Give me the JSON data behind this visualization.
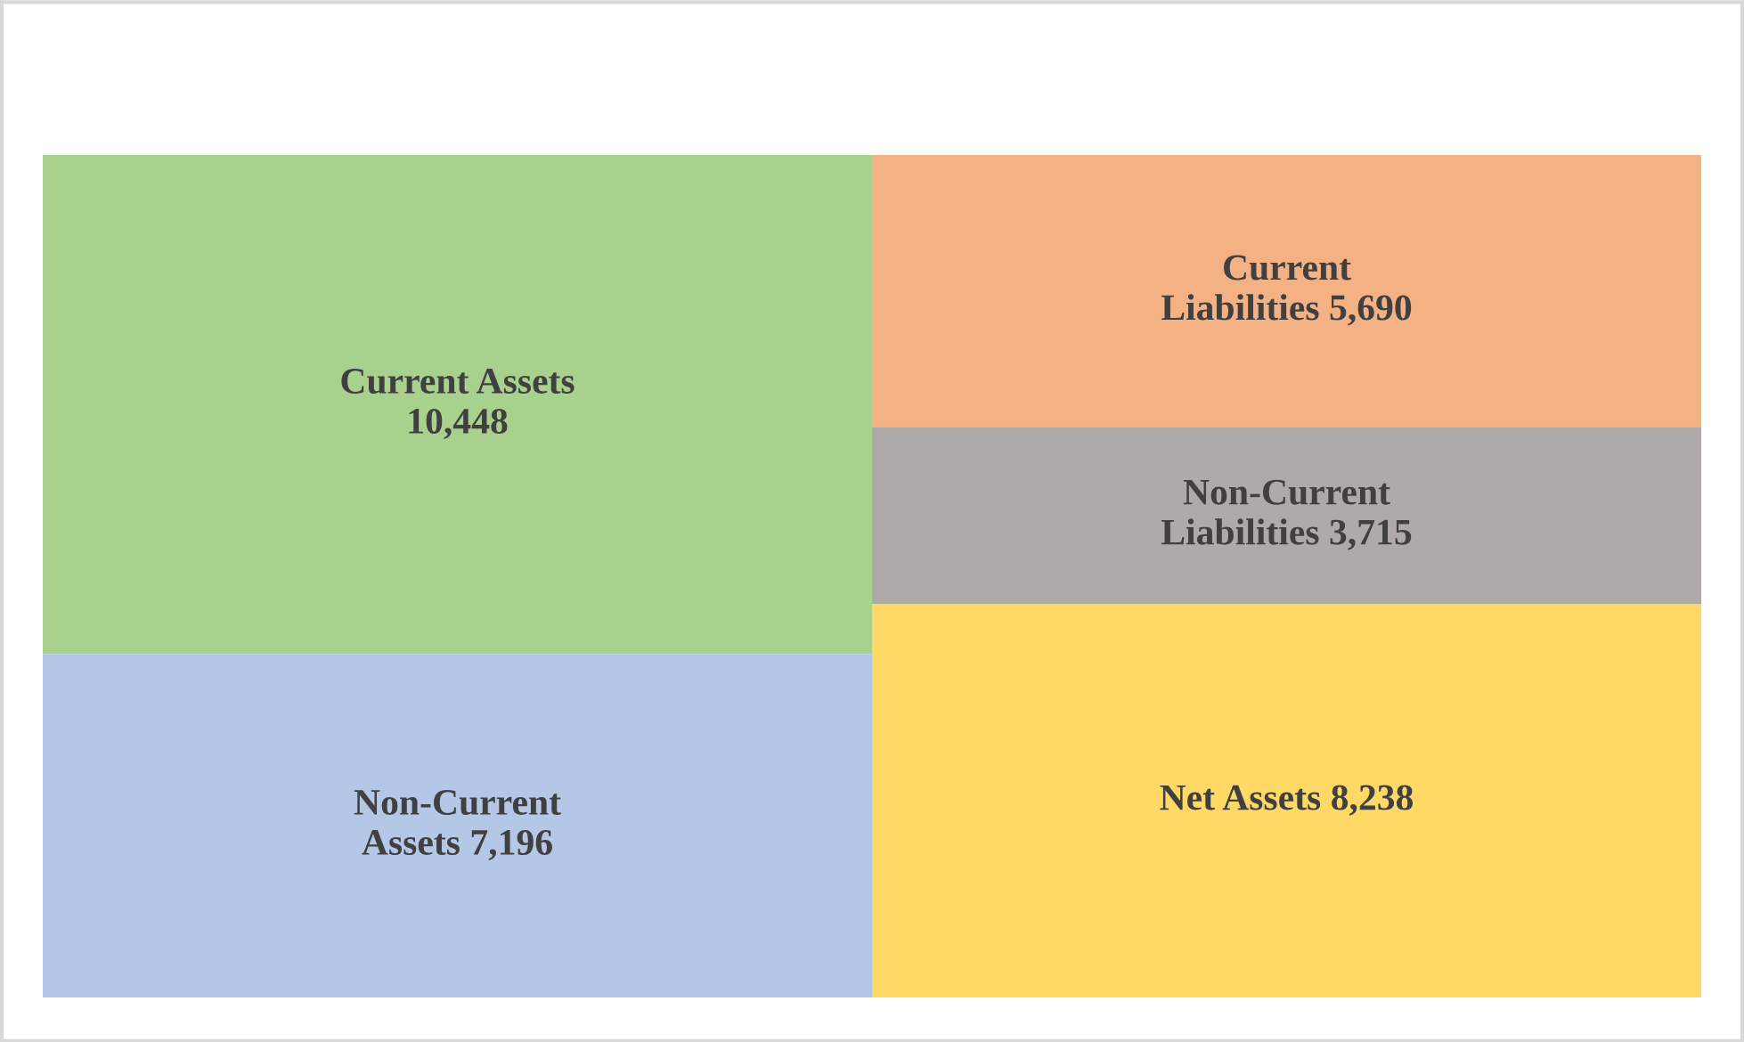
{
  "chart_data": {
    "type": "bar",
    "stacked": true,
    "legend": false,
    "categories": [
      null,
      null
    ],
    "series": [
      {
        "name": "Non-Current Assets",
        "color": "#b4c7e7",
        "values": [
          7196,
          null
        ],
        "value_labels": [
          "7,196",
          null
        ]
      },
      {
        "name": "Current Assets",
        "color": "#a9d18e",
        "values": [
          10448,
          null
        ],
        "value_labels": [
          "10,448",
          null
        ]
      },
      {
        "name": "Net Assets",
        "color": "#ffd966",
        "values": [
          null,
          8238
        ],
        "value_labels": [
          null,
          "8,238"
        ]
      },
      {
        "name": "Non-Current Liabilities",
        "color": "#aeaaaa",
        "values": [
          null,
          3715
        ],
        "value_labels": [
          null,
          "3,715"
        ]
      },
      {
        "name": "Current Liabilities",
        "color": "#f4b183",
        "values": [
          null,
          5690
        ],
        "value_labels": [
          null,
          "5,690"
        ]
      }
    ]
  }
}
